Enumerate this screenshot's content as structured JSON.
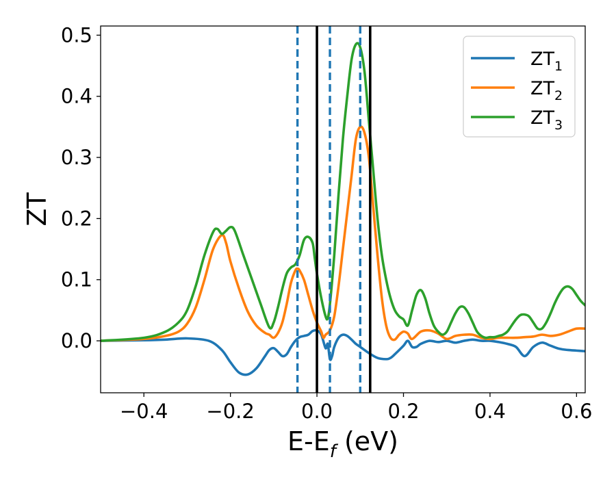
{
  "chart_data": {
    "type": "line",
    "xlabel": "E-E_f (eV)",
    "xlabel_parts": {
      "base": "E-E",
      "sub": "f",
      "rest": " (eV)"
    },
    "ylabel": "ZT",
    "xlim": [
      -0.5,
      0.62
    ],
    "ylim": [
      -0.085,
      0.515
    ],
    "xticks": [
      -0.4,
      -0.2,
      0.0,
      0.2,
      0.4,
      0.6
    ],
    "xtick_labels": [
      "−0.4",
      "−0.2",
      "0.0",
      "0.2",
      "0.4",
      "0.6"
    ],
    "yticks": [
      0.0,
      0.1,
      0.2,
      0.3,
      0.4,
      0.5
    ],
    "ytick_labels": [
      "0.0",
      "0.1",
      "0.2",
      "0.3",
      "0.4",
      "0.5"
    ],
    "grid": false,
    "legend_position": "top-right",
    "vlines": [
      {
        "x": -0.045,
        "style": "dashed",
        "color": "#1f77b4"
      },
      {
        "x": 0.03,
        "style": "dashed",
        "color": "#1f77b4"
      },
      {
        "x": 0.1,
        "style": "dashed",
        "color": "#1f77b4"
      },
      {
        "x": 0.0,
        "style": "solid",
        "color": "#000000"
      },
      {
        "x": 0.123,
        "style": "solid",
        "color": "#000000"
      }
    ],
    "series": [
      {
        "name": "ZT_1",
        "label_base": "ZT",
        "label_sub": "1",
        "color": "#1f77b4",
        "x": [
          -0.5,
          -0.4,
          -0.35,
          -0.3,
          -0.25,
          -0.22,
          -0.2,
          -0.18,
          -0.16,
          -0.14,
          -0.12,
          -0.11,
          -0.1,
          -0.09,
          -0.08,
          -0.07,
          -0.06,
          -0.05,
          -0.04,
          -0.03,
          -0.02,
          -0.01,
          0.0,
          0.01,
          0.02,
          0.025,
          0.03,
          0.035,
          0.04,
          0.05,
          0.06,
          0.07,
          0.08,
          0.09,
          0.1,
          0.12,
          0.14,
          0.16,
          0.17,
          0.18,
          0.2,
          0.21,
          0.22,
          0.23,
          0.24,
          0.26,
          0.28,
          0.3,
          0.32,
          0.34,
          0.36,
          0.38,
          0.4,
          0.42,
          0.44,
          0.46,
          0.48,
          0.5,
          0.52,
          0.54,
          0.56,
          0.58,
          0.6,
          0.62
        ],
        "y": [
          0.0,
          0.001,
          0.002,
          0.004,
          0.0,
          -0.015,
          -0.035,
          -0.052,
          -0.055,
          -0.045,
          -0.025,
          -0.015,
          -0.012,
          -0.018,
          -0.025,
          -0.022,
          -0.01,
          0.0,
          0.006,
          0.008,
          0.01,
          0.016,
          0.017,
          0.01,
          -0.012,
          -0.005,
          -0.03,
          -0.025,
          -0.01,
          0.005,
          0.01,
          0.008,
          0.002,
          -0.005,
          -0.01,
          -0.02,
          -0.028,
          -0.03,
          -0.028,
          -0.022,
          -0.008,
          0.0,
          -0.01,
          -0.01,
          -0.005,
          0.0,
          -0.002,
          0.0,
          -0.003,
          0.0,
          0.002,
          0.0,
          0.0,
          -0.002,
          -0.005,
          -0.01,
          -0.025,
          -0.01,
          -0.003,
          -0.008,
          -0.013,
          -0.015,
          -0.016,
          -0.017
        ]
      },
      {
        "name": "ZT_2",
        "label_base": "ZT",
        "label_sub": "2",
        "color": "#ff7f0e",
        "x": [
          -0.5,
          -0.4,
          -0.35,
          -0.32,
          -0.3,
          -0.28,
          -0.26,
          -0.24,
          -0.22,
          -0.21,
          -0.2,
          -0.18,
          -0.16,
          -0.14,
          -0.12,
          -0.11,
          -0.1,
          -0.09,
          -0.08,
          -0.07,
          -0.06,
          -0.05,
          -0.045,
          -0.04,
          -0.03,
          -0.02,
          -0.01,
          0.0,
          0.01,
          0.015,
          0.02,
          0.03,
          0.04,
          0.05,
          0.06,
          0.07,
          0.08,
          0.09,
          0.1,
          0.11,
          0.12,
          0.13,
          0.14,
          0.15,
          0.16,
          0.17,
          0.18,
          0.19,
          0.2,
          0.21,
          0.22,
          0.24,
          0.26,
          0.28,
          0.3,
          0.32,
          0.34,
          0.36,
          0.38,
          0.4,
          0.42,
          0.44,
          0.46,
          0.48,
          0.5,
          0.52,
          0.54,
          0.56,
          0.58,
          0.6,
          0.62
        ],
        "y": [
          0.0,
          0.003,
          0.008,
          0.015,
          0.028,
          0.055,
          0.1,
          0.15,
          0.173,
          0.16,
          0.13,
          0.085,
          0.048,
          0.025,
          0.013,
          0.01,
          0.005,
          0.013,
          0.03,
          0.06,
          0.095,
          0.115,
          0.118,
          0.115,
          0.1,
          0.075,
          0.05,
          0.03,
          0.015,
          0.005,
          0.01,
          0.017,
          0.04,
          0.09,
          0.15,
          0.21,
          0.27,
          0.33,
          0.35,
          0.34,
          0.3,
          0.22,
          0.14,
          0.07,
          0.025,
          0.005,
          0.002,
          0.01,
          0.015,
          0.012,
          0.003,
          0.015,
          0.017,
          0.012,
          0.003,
          0.008,
          0.01,
          0.01,
          0.005,
          0.003,
          0.005,
          0.005,
          0.005,
          0.006,
          0.007,
          0.01,
          0.008,
          0.01,
          0.015,
          0.02,
          0.02
        ]
      },
      {
        "name": "ZT_3",
        "label_base": "ZT",
        "label_sub": "3",
        "color": "#2ca02c",
        "x": [
          -0.5,
          -0.4,
          -0.35,
          -0.32,
          -0.3,
          -0.28,
          -0.26,
          -0.24,
          -0.23,
          -0.22,
          -0.21,
          -0.2,
          -0.19,
          -0.17,
          -0.15,
          -0.13,
          -0.11,
          -0.1,
          -0.09,
          -0.08,
          -0.07,
          -0.06,
          -0.05,
          -0.04,
          -0.03,
          -0.02,
          -0.01,
          -0.005,
          0.0,
          0.01,
          0.02,
          0.025,
          0.03,
          0.04,
          0.05,
          0.06,
          0.07,
          0.08,
          0.09,
          0.1,
          0.11,
          0.12,
          0.13,
          0.14,
          0.15,
          0.16,
          0.17,
          0.18,
          0.19,
          0.2,
          0.21,
          0.22,
          0.23,
          0.24,
          0.25,
          0.26,
          0.27,
          0.28,
          0.29,
          0.3,
          0.31,
          0.32,
          0.33,
          0.34,
          0.35,
          0.36,
          0.37,
          0.38,
          0.39,
          0.4,
          0.41,
          0.42,
          0.43,
          0.44,
          0.45,
          0.46,
          0.47,
          0.48,
          0.49,
          0.5,
          0.51,
          0.52,
          0.53,
          0.54,
          0.55,
          0.56,
          0.57,
          0.58,
          0.59,
          0.6,
          0.61,
          0.62
        ],
        "y": [
          0.0,
          0.005,
          0.015,
          0.03,
          0.05,
          0.09,
          0.14,
          0.178,
          0.183,
          0.175,
          0.18,
          0.186,
          0.18,
          0.14,
          0.1,
          0.06,
          0.022,
          0.03,
          0.055,
          0.085,
          0.11,
          0.12,
          0.125,
          0.14,
          0.165,
          0.17,
          0.16,
          0.135,
          0.11,
          0.07,
          0.04,
          0.037,
          0.06,
          0.14,
          0.24,
          0.33,
          0.4,
          0.46,
          0.485,
          0.48,
          0.44,
          0.36,
          0.28,
          0.2,
          0.14,
          0.1,
          0.07,
          0.05,
          0.04,
          0.035,
          0.025,
          0.05,
          0.075,
          0.083,
          0.07,
          0.045,
          0.025,
          0.015,
          0.01,
          0.015,
          0.03,
          0.045,
          0.055,
          0.055,
          0.045,
          0.03,
          0.015,
          0.008,
          0.005,
          0.006,
          0.006,
          0.008,
          0.01,
          0.015,
          0.025,
          0.035,
          0.042,
          0.043,
          0.04,
          0.03,
          0.02,
          0.02,
          0.03,
          0.045,
          0.062,
          0.076,
          0.086,
          0.089,
          0.085,
          0.075,
          0.065,
          0.058
        ]
      }
    ]
  }
}
